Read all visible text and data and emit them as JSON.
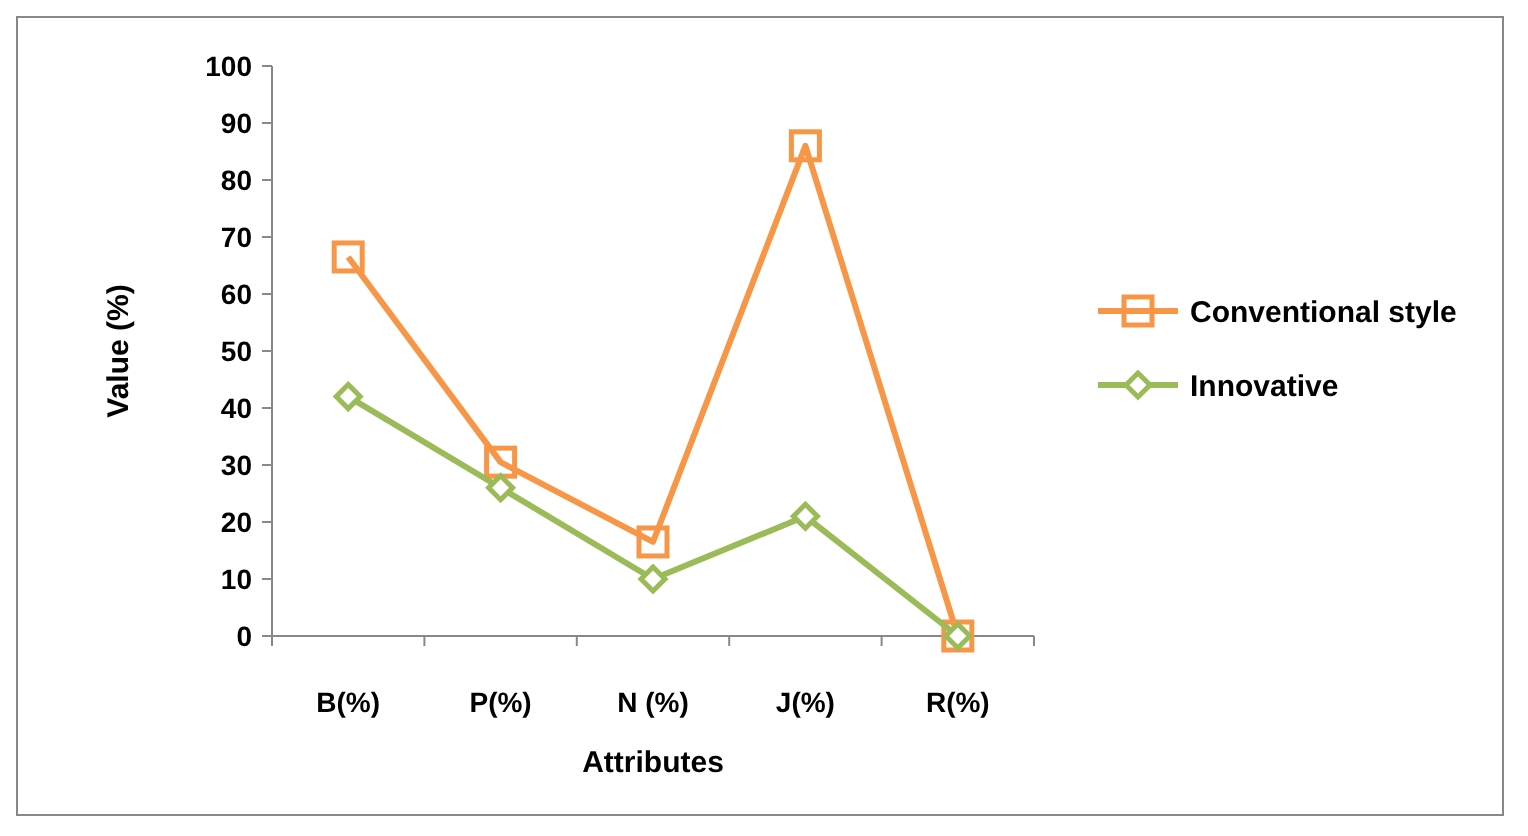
{
  "chart_data": {
    "type": "line",
    "xlabel": "Attributes",
    "ylabel": "Value (%)",
    "categories": [
      "B(%)",
      "P(%)",
      "N (%)",
      "J(%)",
      "R(%)"
    ],
    "series": [
      {
        "name": "Conventional style",
        "color": "#f79646",
        "marker": "square",
        "values": [
          66.5,
          30.5,
          16.5,
          86,
          0
        ]
      },
      {
        "name": "Innovative",
        "color": "#9bbb59",
        "marker": "diamond",
        "values": [
          42,
          26,
          10,
          21,
          0
        ]
      }
    ],
    "ylim": [
      0,
      100
    ],
    "yticks": [
      0,
      10,
      20,
      30,
      40,
      50,
      60,
      70,
      80,
      90,
      100
    ],
    "grid": false,
    "legend": "right"
  }
}
